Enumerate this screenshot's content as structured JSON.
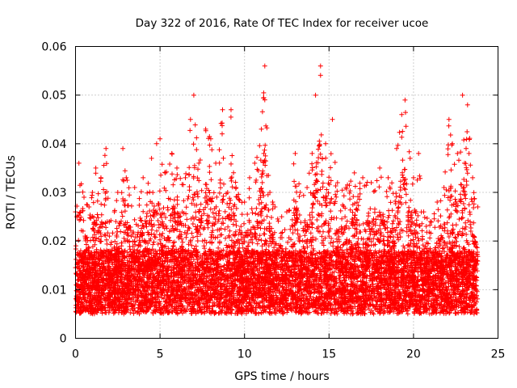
{
  "chart_data": {
    "type": "scatter",
    "title": "Day 322 of 2016, Rate Of TEC Index for receiver ucoe",
    "xlabel": "GPS time / hours",
    "ylabel": "ROTI / TECUs",
    "xlim": [
      0,
      25
    ],
    "ylim": [
      0,
      0.06
    ],
    "x_ticks": [
      "0",
      "5",
      "10",
      "15",
      "20",
      "25"
    ],
    "y_ticks": [
      "0",
      "0.01",
      "0.02",
      "0.03",
      "0.04",
      "0.05",
      "0.06"
    ],
    "grid": true,
    "marker": "+",
    "color": "#ff0000",
    "x_data_range": [
      0,
      23.8
    ],
    "series": [
      {
        "envelope": [
          [
            0.0,
            0.026
          ],
          [
            0.2,
            0.036
          ],
          [
            0.5,
            0.029
          ],
          [
            0.8,
            0.027
          ],
          [
            1.0,
            0.03
          ],
          [
            1.2,
            0.035
          ],
          [
            1.5,
            0.033
          ],
          [
            1.8,
            0.039
          ],
          [
            2.0,
            0.024
          ],
          [
            2.3,
            0.026
          ],
          [
            2.5,
            0.03
          ],
          [
            2.8,
            0.039
          ],
          [
            3.0,
            0.033
          ],
          [
            3.5,
            0.031
          ],
          [
            4.0,
            0.033
          ],
          [
            4.5,
            0.037
          ],
          [
            4.8,
            0.04
          ],
          [
            5.0,
            0.041
          ],
          [
            5.3,
            0.034
          ],
          [
            5.7,
            0.038
          ],
          [
            6.0,
            0.035
          ],
          [
            6.5,
            0.033
          ],
          [
            6.8,
            0.045
          ],
          [
            7.0,
            0.05
          ],
          [
            7.3,
            0.036
          ],
          [
            7.7,
            0.043
          ],
          [
            8.0,
            0.041
          ],
          [
            8.3,
            0.036
          ],
          [
            8.7,
            0.047
          ],
          [
            9.0,
            0.03
          ],
          [
            9.2,
            0.047
          ],
          [
            9.5,
            0.031
          ],
          [
            10.0,
            0.028
          ],
          [
            10.3,
            0.033
          ],
          [
            10.6,
            0.036
          ],
          [
            11.0,
            0.043
          ],
          [
            11.2,
            0.056
          ],
          [
            11.5,
            0.03
          ],
          [
            11.8,
            0.027
          ],
          [
            12.2,
            0.025
          ],
          [
            12.5,
            0.026
          ],
          [
            13.0,
            0.038
          ],
          [
            13.3,
            0.03
          ],
          [
            13.7,
            0.031
          ],
          [
            14.0,
            0.038
          ],
          [
            14.2,
            0.05
          ],
          [
            14.5,
            0.056
          ],
          [
            14.8,
            0.04
          ],
          [
            15.2,
            0.045
          ],
          [
            15.5,
            0.032
          ],
          [
            16.0,
            0.031
          ],
          [
            16.5,
            0.034
          ],
          [
            17.0,
            0.033
          ],
          [
            17.5,
            0.032
          ],
          [
            18.0,
            0.035
          ],
          [
            18.5,
            0.033
          ],
          [
            19.0,
            0.039
          ],
          [
            19.3,
            0.046
          ],
          [
            19.5,
            0.049
          ],
          [
            19.8,
            0.037
          ],
          [
            20.0,
            0.033
          ],
          [
            20.3,
            0.038
          ],
          [
            20.6,
            0.026
          ],
          [
            21.0,
            0.024
          ],
          [
            21.4,
            0.028
          ],
          [
            21.8,
            0.031
          ],
          [
            22.1,
            0.045
          ],
          [
            22.3,
            0.04
          ],
          [
            22.6,
            0.038
          ],
          [
            22.9,
            0.05
          ],
          [
            23.2,
            0.048
          ],
          [
            23.5,
            0.033
          ],
          [
            23.8,
            0.027
          ]
        ]
      }
    ]
  }
}
